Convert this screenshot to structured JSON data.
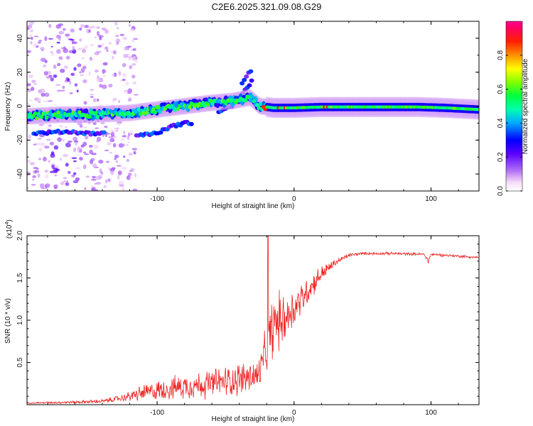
{
  "figure_title": "C2E6.2025.321.09.08.G29",
  "chart_data": [
    {
      "type": "heatmap",
      "title": "C2E6.2025.321.09.08.G29",
      "xlabel": "Height of straight line (km)",
      "ylabel": "Frequency (Hz)",
      "xlim": [
        -195,
        135
      ],
      "ylim": [
        -50,
        50
      ],
      "xticks": [
        -100,
        0,
        100
      ],
      "yticks": [
        -40,
        -20,
        0,
        20,
        40
      ],
      "xtick_labels": [
        "-100",
        "0",
        "100"
      ],
      "ytick_labels": [
        "-40",
        "-20",
        "0",
        "20",
        "40"
      ],
      "colorbar": {
        "label": "Normalized spectral amplitude",
        "range": [
          0,
          1
        ],
        "ticks": [
          0.0,
          0.2,
          0.4,
          0.6,
          0.8
        ],
        "tick_labels": [
          "0.0",
          "0.2",
          "0.4",
          "0.6",
          "0.8"
        ],
        "colormap": [
          "#f7ddf7",
          "#a855f7",
          "#6a00ff",
          "#0000ff",
          "#00c8ff",
          "#00ff80",
          "#80ff00",
          "#ffff00",
          "#ff8000",
          "#ff0000",
          "#ff0090"
        ]
      },
      "ridge": {
        "x": [
          -195,
          -170,
          -150,
          -120,
          -100,
          -80,
          -60,
          -45,
          -32,
          -25,
          -15,
          0,
          20,
          50,
          90,
          110,
          135
        ],
        "y": [
          -6,
          -5,
          -5,
          -4,
          -2,
          0,
          2,
          3,
          5,
          0,
          -1,
          -1,
          -0.5,
          -0.5,
          -0.5,
          -1,
          -2
        ]
      },
      "branches": [
        {
          "x": [
            -190,
            -165,
            -150,
            -138
          ],
          "y": [
            -16,
            -15,
            -16,
            -16
          ]
        },
        {
          "x": [
            -115,
            -100,
            -90,
            -80,
            -75
          ],
          "y": [
            -17,
            -16,
            -12,
            -10,
            -10
          ]
        },
        {
          "x": [
            -55,
            -45,
            -40,
            -35,
            -30
          ],
          "y": [
            -3,
            0,
            5,
            10,
            16
          ]
        },
        {
          "x": [
            -38,
            -34,
            -30
          ],
          "y": [
            13,
            18,
            23
          ]
        }
      ]
    },
    {
      "type": "line",
      "xlabel": "Height of straight line (km)",
      "ylabel": "SNR (10 * v/v)",
      "y_multiplier_label": "(x10",
      "y_multiplier_exponent": "4",
      "xlim": [
        -195,
        135
      ],
      "ylim": [
        0,
        2.0
      ],
      "xticks": [
        -100,
        0,
        100
      ],
      "yticks": [
        0.5,
        1.0,
        1.5,
        2.0
      ],
      "xtick_labels": [
        "-100",
        "0",
        "100"
      ],
      "ytick_labels": [
        "0.5",
        "1.0",
        "1.5",
        "2.0"
      ],
      "color": "#ee2222",
      "series": [
        {
          "name": "SNR",
          "envelope_x": [
            -195,
            -160,
            -140,
            -125,
            -110,
            -95,
            -80,
            -65,
            -50,
            -35,
            -26,
            -22,
            -19,
            -17,
            -14,
            -10,
            -5,
            0,
            10,
            20,
            30,
            40,
            50,
            70,
            95,
            98,
            100,
            120,
            135
          ],
          "envelope_y": [
            0.02,
            0.03,
            0.04,
            0.08,
            0.14,
            0.18,
            0.22,
            0.24,
            0.28,
            0.32,
            0.34,
            0.55,
            0.75,
            0.85,
            0.95,
            1.0,
            1.05,
            1.15,
            1.35,
            1.55,
            1.68,
            1.77,
            1.79,
            1.79,
            1.78,
            1.7,
            1.78,
            1.76,
            1.74
          ],
          "noise_amplitude_y": [
            0.01,
            0.02,
            0.03,
            0.05,
            0.12,
            0.15,
            0.18,
            0.2,
            0.22,
            0.25,
            0.25,
            0.3,
            0.4,
            0.45,
            0.45,
            0.4,
            0.35,
            0.3,
            0.2,
            0.12,
            0.05,
            0.03,
            0.02,
            0.02,
            0.02,
            0.05,
            0.02,
            0.02,
            0.02
          ],
          "spike": {
            "x": -19,
            "y": 2.0
          }
        }
      ]
    }
  ]
}
